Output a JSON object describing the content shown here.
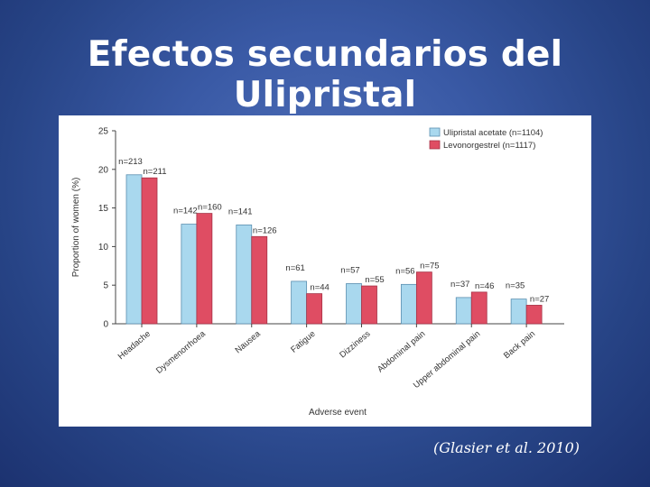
{
  "slide": {
    "title": "Efectos secundarios del Ulipristal",
    "citation": "(Glasier et al. 2010)"
  },
  "colors": {
    "series_1": "#a9d8ee",
    "series_2": "#df4d63",
    "axis": "#444444"
  },
  "chart_data": {
    "type": "bar",
    "xlabel": "Adverse event",
    "ylabel": "Proportion of women (%)",
    "ylim": [
      0,
      25
    ],
    "yticks": [
      "0",
      "5",
      "10",
      "15",
      "20",
      "25"
    ],
    "categories": [
      "Headache",
      "Dysmenorrhoea",
      "Nausea",
      "Fatigue",
      "Dizziness",
      "Abdominal pain",
      "Upper abdominal pain",
      "Back pain"
    ],
    "legend": {
      "position": "top-right"
    },
    "grid": false,
    "series": [
      {
        "name": "Ulipristal acetate (n=1104)",
        "values": [
          19.3,
          12.9,
          12.8,
          5.5,
          5.2,
          5.1,
          3.4,
          3.2
        ],
        "labels": [
          "n=213",
          "n=142",
          "n=141",
          "n=61",
          "n=57",
          "n=56",
          "n=37",
          "n=35"
        ]
      },
      {
        "name": "Levonorgestrel (n=1117)",
        "values": [
          18.9,
          14.3,
          11.3,
          3.9,
          4.9,
          6.7,
          4.1,
          2.4
        ],
        "labels": [
          "n=211",
          "n=160",
          "n=126",
          "n=44",
          "n=55",
          "n=75",
          "n=46",
          "n=27"
        ]
      }
    ]
  }
}
